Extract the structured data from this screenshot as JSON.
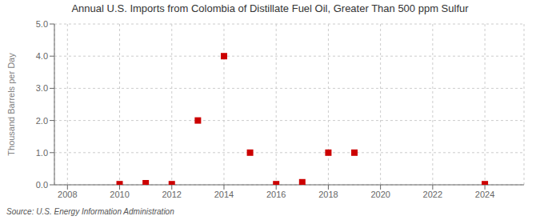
{
  "chart_data": {
    "type": "scatter",
    "title": "Annual U.S. Imports from Colombia of Distillate Fuel Oil, Greater Than 500 ppm Sulfur",
    "ylabel": "Thousand Barrels per Day",
    "annotations": [
      "Source: U.S. Energy Information Administration"
    ],
    "x": [
      2010,
      2011,
      2012,
      2013,
      2014,
      2015,
      2016,
      2017,
      2018,
      2019,
      2024
    ],
    "values": [
      0.02,
      0.05,
      0.02,
      2.0,
      4.0,
      1.0,
      0.02,
      0.08,
      1.0,
      1.0,
      0.02
    ],
    "xlim": [
      2007.5,
      2025.5
    ],
    "ylim": [
      0.0,
      5.0
    ],
    "xticks": [
      2008,
      2010,
      2012,
      2014,
      2016,
      2018,
      2020,
      2022,
      2024
    ],
    "yticks": [
      {
        "value": 0,
        "label": "0.0"
      },
      {
        "value": 1,
        "label": "1.0"
      },
      {
        "value": 2,
        "label": "2.0"
      },
      {
        "value": 3,
        "label": "3.0"
      },
      {
        "value": 4,
        "label": "4.0"
      },
      {
        "value": 5,
        "label": "5.0"
      }
    ],
    "color": "#cc0000",
    "marker": "square",
    "grid": true
  }
}
